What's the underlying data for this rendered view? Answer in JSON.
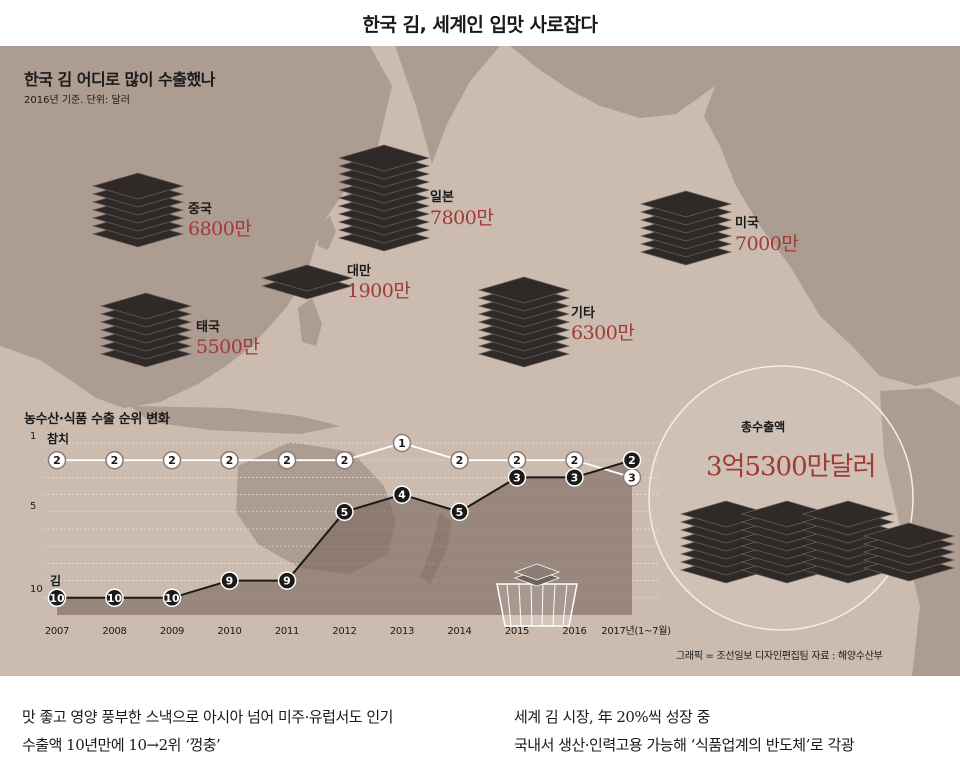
{
  "headline": "한국 김, 세계인 입맛 사로잡다",
  "map": {
    "title": "한국 김 어디로 많이 수출했나",
    "subtitle": "2016년 기준. 단위: 달러",
    "exports": [
      {
        "name": "중국",
        "value_label": "6800만",
        "value": 68000000
      },
      {
        "name": "일본",
        "value_label": "7800만",
        "value": 78000000
      },
      {
        "name": "대만",
        "value_label": "1900만",
        "value": 19000000
      },
      {
        "name": "태국",
        "value_label": "5500만",
        "value": 55000000
      },
      {
        "name": "기타",
        "value_label": "6300만",
        "value": 63000000
      },
      {
        "name": "미국",
        "value_label": "7000만",
        "value": 70000000
      }
    ],
    "total_label": "총수출액",
    "total_value": "3억5300만달러",
    "credit": "그래픽 = 조선일보 디자인편집팀    자료 : 해양수산부"
  },
  "chart_data": {
    "type": "line",
    "title": "농수산·식품 수출 순위 변화",
    "x": [
      "2007",
      "2008",
      "2009",
      "2010",
      "2011",
      "2012",
      "2013",
      "2014",
      "2015",
      "2016",
      "2017년(1~7월)"
    ],
    "y_axis": {
      "ticks": [
        "1",
        "5",
        "10"
      ],
      "inverted": true,
      "range": [
        1,
        11
      ]
    },
    "series": [
      {
        "name": "참치",
        "color": "#ffffff",
        "values": [
          2,
          2,
          2,
          2,
          2,
          2,
          1,
          2,
          2,
          2,
          3
        ]
      },
      {
        "name": "김",
        "color": "#1a1a1a",
        "values": [
          10,
          10,
          10,
          9,
          9,
          5,
          4,
          5,
          3,
          3,
          2
        ]
      }
    ]
  },
  "colors": {
    "map_background": "#cbbcaf",
    "land": "#ad9c91",
    "accent_red": "#a23a35",
    "laver_sheet": "#2f2a28"
  },
  "footer": {
    "left": [
      "맛 좋고 영양 풍부한 스낵으로 아시아 넘어 미주·유럽서도 인기",
      "수출액 10년만에 10→2위 ‘껑충’"
    ],
    "right": [
      "세계 김 시장, 年 20%씩 성장 중",
      "국내서 생산·인력고용 가능해 ‘식품업계의 반도체’로 각광"
    ]
  }
}
